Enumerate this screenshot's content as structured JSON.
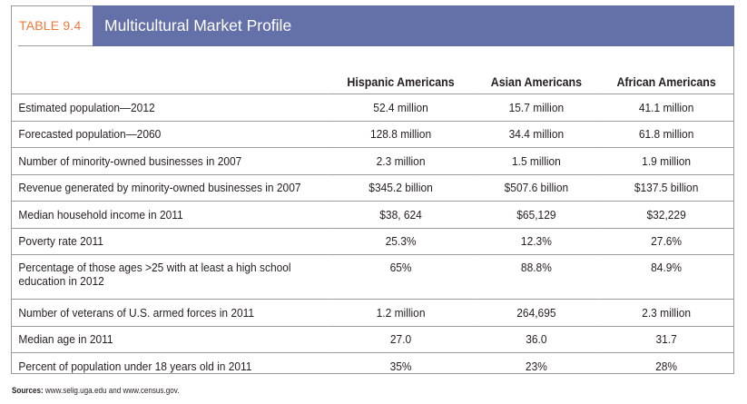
{
  "table": {
    "number_label": "TABLE 9.4",
    "title": "Multicultural Market Profile",
    "columns": [
      "",
      "Hispanic Americans",
      "Asian Americans",
      "African Americans"
    ],
    "rows": [
      {
        "label": "Estimated population—2012",
        "values": [
          "52.4 million",
          "15.7 million",
          "41.1 million"
        ]
      },
      {
        "label": "Forecasted population—2060",
        "values": [
          "128.8 million",
          "34.4 million",
          "61.8 million"
        ]
      },
      {
        "label": "Number of minority-owned businesses in 2007",
        "values": [
          "2.3 million",
          "1.5 million",
          "1.9 million"
        ]
      },
      {
        "label": "Revenue generated by minority-owned businesses in 2007",
        "values": [
          "$345.2 billion",
          "$507.6 billion",
          "$137.5 billion"
        ]
      },
      {
        "label": "Median household income in 2011",
        "values": [
          "$38, 624",
          "$65,129",
          "$32,229"
        ]
      },
      {
        "label": "Poverty rate 2011",
        "values": [
          "25.3%",
          "12.3%",
          "27.6%"
        ]
      },
      {
        "label": "Percentage of those ages >25 with at least a high school education in 2012",
        "values": [
          "65%",
          "88.8%",
          "84.9%"
        ]
      },
      {
        "label": "Number of veterans of U.S. armed forces in 2011",
        "values": [
          "1.2 million",
          "264,695",
          "2.3 million"
        ]
      },
      {
        "label": "Median age in 2011",
        "values": [
          "27.0",
          "36.0",
          "31.7"
        ]
      },
      {
        "label": "Percent of population under 18 years old in 2011",
        "values": [
          "35%",
          "23%",
          "28%"
        ]
      }
    ]
  },
  "sources": {
    "label": "Sources:",
    "text": " www.selig.uga.edu and www.census.gov."
  },
  "colors": {
    "title_bar": "#6470a8",
    "table_label": "#f0793a"
  }
}
